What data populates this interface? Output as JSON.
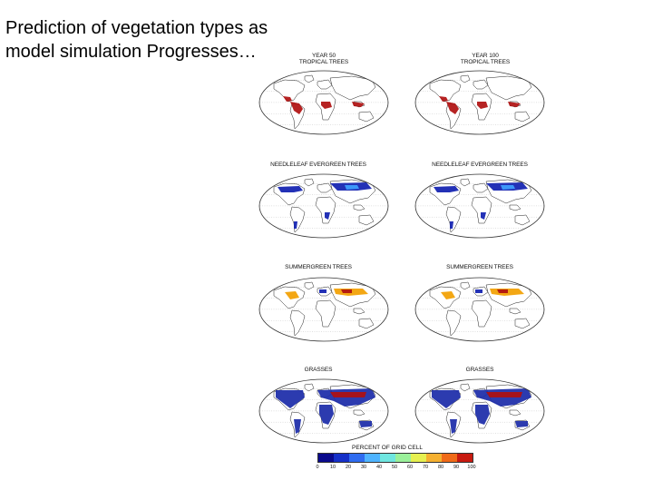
{
  "slide": {
    "title": "Prediction of vegetation types as model simulation Progresses…"
  },
  "colors": {
    "ocean": "#ffffff",
    "land": "#ffffff",
    "outline": "#222222",
    "tropical": "#b01010",
    "needle_dark": "#1020b0",
    "needle_light": "#3fa0ff",
    "summer_mix": "#f2a000",
    "grass_dark": "#1a2aa8"
  },
  "panels": [
    {
      "title": "YEAR 50\nTROPICAL TREES",
      "variable": "tropical-trees",
      "year": "50"
    },
    {
      "title": "YEAR 100\nTROPICAL TREES",
      "variable": "tropical-trees",
      "year": "100"
    },
    {
      "title": "NEEDLELEAF EVERGREEN TREES",
      "variable": "needleleaf-evergreen-trees"
    },
    {
      "title": "NEEDLELEAF EVERGREEN TREES",
      "variable": "needleleaf-evergreen-trees"
    },
    {
      "title": "SUMMERGREEN TREES",
      "variable": "summergreen-trees"
    },
    {
      "title": "SUMMERGREEN TREES",
      "variable": "summergreen-trees"
    },
    {
      "title": "GRASSES",
      "variable": "grasses"
    },
    {
      "title": "GRASSES",
      "variable": "grasses"
    }
  ],
  "colorbar": {
    "label": "PERCENT OF GRID CELL",
    "ticks": [
      "0",
      "10",
      "20",
      "30",
      "40",
      "50",
      "60",
      "70",
      "80",
      "90",
      "100"
    ],
    "colors": [
      "#0a0a8c",
      "#1530c8",
      "#2f6cf0",
      "#4fb4ff",
      "#6fe6e0",
      "#9af09a",
      "#e6f050",
      "#f5b030",
      "#f06a18",
      "#c81a10"
    ]
  }
}
